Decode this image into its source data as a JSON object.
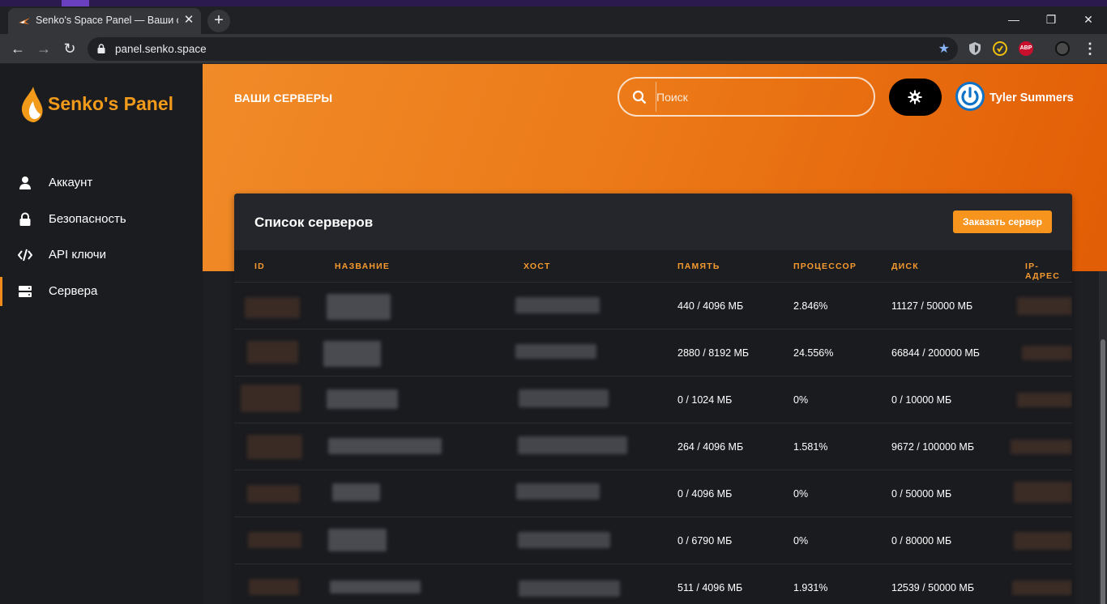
{
  "browser": {
    "tab_title": "Senko's Space Panel — Ваши сер",
    "tab_close": "✕",
    "new_tab": "+",
    "url": "panel.senko.space",
    "window_controls": {
      "minimize": "—",
      "maximize": "❐",
      "close": "✕"
    },
    "nav": {
      "back": "←",
      "forward": "→",
      "reload": "↻"
    },
    "icons": [
      "lock-icon",
      "star-icon",
      "shield-extension-icon",
      "extension-icon",
      "adblock-icon",
      "profile-avatar-icon",
      "menu-dots-icon"
    ],
    "extension_abp_label": "ABP"
  },
  "sidebar": {
    "brand": "Senko's Panel",
    "items": [
      {
        "label": "Аккаунт",
        "icon": "user-icon",
        "active": false
      },
      {
        "label": "Безопасность",
        "icon": "lock-icon",
        "active": false
      },
      {
        "label": "API ключи",
        "icon": "code-icon",
        "active": false
      },
      {
        "label": "Сервера",
        "icon": "server-icon",
        "active": true
      }
    ]
  },
  "header": {
    "title": "ВАШИ СЕРВЕРЫ",
    "search_placeholder": "Поиск",
    "theme_toggle_icon": "gear-icon",
    "user_name": "Tyler Summers"
  },
  "servers_card": {
    "title": "Список серверов",
    "order_button": "Заказать сервер",
    "columns": [
      "ID",
      "НАЗВАНИЕ",
      "ХОСТ",
      "ПАМЯТЬ",
      "ПРОЦЕССОР",
      "ДИСК",
      "IP-АДРЕС"
    ],
    "rows": [
      {
        "memory": "440 / 4096 МБ",
        "cpu": "2.846%",
        "disk": "11127 / 50000 МБ"
      },
      {
        "memory": "2880 / 8192 МБ",
        "cpu": "24.556%",
        "disk": "66844 / 200000 МБ"
      },
      {
        "memory": "0 / 1024 МБ",
        "cpu": "0%",
        "disk": "0 / 10000 МБ"
      },
      {
        "memory": "264 / 4096 МБ",
        "cpu": "1.581%",
        "disk": "9672 / 100000 МБ"
      },
      {
        "memory": "0 / 4096 МБ",
        "cpu": "0%",
        "disk": "0 / 50000 МБ"
      },
      {
        "memory": "0 / 6790 МБ",
        "cpu": "0%",
        "disk": "0 / 80000 МБ"
      },
      {
        "memory": "511 / 4096 МБ",
        "cpu": "1.931%",
        "disk": "12539 / 50000 МБ"
      }
    ]
  },
  "colors": {
    "accent": "#f7941d",
    "hero_start": "#f08b28",
    "hero_end": "#e25d05",
    "sidebar_bg": "#1b1c20",
    "card_bg": "#1a1b1f",
    "column_header": "#f59a2f"
  }
}
